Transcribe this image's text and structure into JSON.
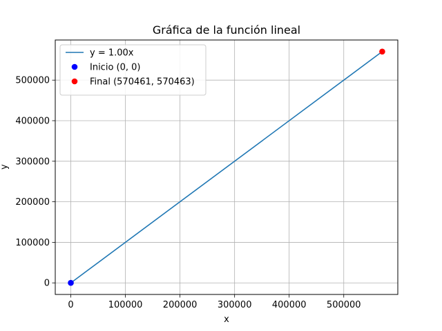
{
  "chart_data": {
    "type": "line",
    "title": "Gráfica de la función lineal",
    "xlabel": "x",
    "ylabel": "y",
    "xlim": [
      -28523,
      599000
    ],
    "ylim": [
      -28523,
      598986
    ],
    "grid": true,
    "legend_position": "top-left",
    "x_ticks": [
      {
        "value": 0,
        "label": "0"
      },
      {
        "value": 100000,
        "label": "100000"
      },
      {
        "value": 200000,
        "label": "200000"
      },
      {
        "value": 300000,
        "label": "300000"
      },
      {
        "value": 400000,
        "label": "400000"
      },
      {
        "value": 500000,
        "label": "500000"
      }
    ],
    "y_ticks": [
      {
        "value": 0,
        "label": "0"
      },
      {
        "value": 100000,
        "label": "100000"
      },
      {
        "value": 200000,
        "label": "200000"
      },
      {
        "value": 300000,
        "label": "300000"
      },
      {
        "value": 400000,
        "label": "400000"
      },
      {
        "value": 500000,
        "label": "500000"
      }
    ],
    "series": [
      {
        "name": "y = 1.00x",
        "kind": "line",
        "color": "#1f77b4",
        "x": [
          0,
          570461
        ],
        "y": [
          0,
          570463
        ]
      },
      {
        "name": "Inicio (0, 0)",
        "kind": "scatter",
        "color": "#0000ff",
        "x": [
          0
        ],
        "y": [
          0
        ]
      },
      {
        "name": "Final (570461, 570463)",
        "kind": "scatter",
        "color": "#ff0000",
        "x": [
          570461
        ],
        "y": [
          570463
        ]
      }
    ]
  }
}
